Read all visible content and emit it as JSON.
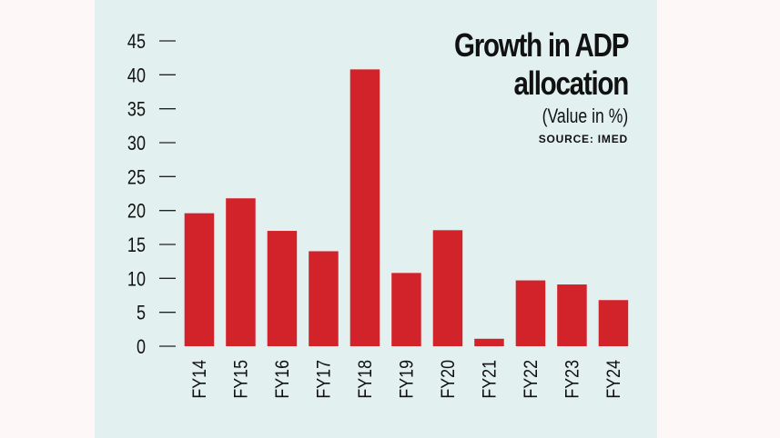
{
  "chart_data": {
    "type": "bar",
    "title": "Growth in ADP allocation",
    "title_lines": [
      "Growth in ADP",
      "allocation"
    ],
    "subtitle": "(Value in %)",
    "source": "SOURCE: IMED",
    "categories": [
      "FY14",
      "FY15",
      "FY16",
      "FY17",
      "FY18",
      "FY19",
      "FY20",
      "FY21",
      "FY22",
      "FY23",
      "FY24"
    ],
    "values": [
      19.6,
      21.8,
      17.0,
      14.0,
      40.8,
      10.8,
      17.1,
      1.1,
      9.7,
      9.1,
      6.8
    ],
    "yticks": [
      0,
      5,
      10,
      15,
      20,
      25,
      30,
      35,
      40,
      45
    ],
    "ylim": [
      0,
      45
    ],
    "grid": false,
    "bar_color": "#d2232a",
    "background_color": "#e2f1f0"
  }
}
